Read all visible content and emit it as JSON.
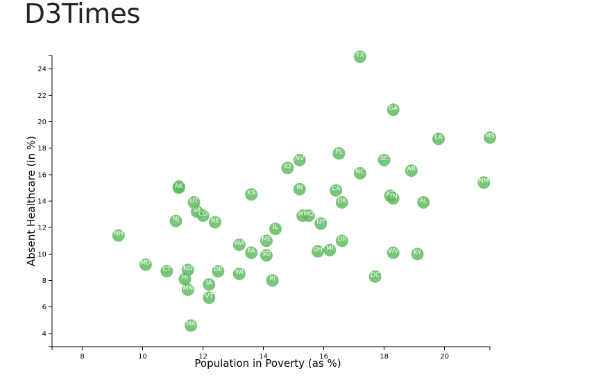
{
  "page": {
    "title": "D3Times"
  },
  "colors": {
    "marker": "#5cb85c",
    "marker_label": "#ffffff",
    "title": "#212529"
  },
  "chart_data": {
    "type": "scatter",
    "title": "",
    "xlabel": "Population in Poverty (as %)",
    "ylabel": "Absent Healthcare (in %)",
    "xlim": [
      7,
      21.5
    ],
    "ylim": [
      3,
      25
    ],
    "x_ticks": [
      8,
      10,
      12,
      14,
      16,
      18,
      20
    ],
    "y_ticks": [
      4,
      6,
      8,
      10,
      12,
      14,
      16,
      18,
      20,
      22,
      24
    ],
    "grid": false,
    "points": [
      {
        "label": "TX",
        "x": 17.2,
        "y": 24.9
      },
      {
        "label": "GA",
        "x": 18.3,
        "y": 20.9
      },
      {
        "label": "LA",
        "x": 19.8,
        "y": 18.7
      },
      {
        "label": "MS",
        "x": 21.5,
        "y": 18.8
      },
      {
        "label": "FL",
        "x": 16.5,
        "y": 17.6
      },
      {
        "label": "SC",
        "x": 18.0,
        "y": 17.1
      },
      {
        "label": "NV",
        "x": 15.2,
        "y": 17.1
      },
      {
        "label": "ID",
        "x": 14.8,
        "y": 16.5
      },
      {
        "label": "AR",
        "x": 18.9,
        "y": 16.3
      },
      {
        "label": "NC",
        "x": 17.2,
        "y": 16.1
      },
      {
        "label": "NM",
        "x": 21.3,
        "y": 15.4
      },
      {
        "label": "WY",
        "x": 11.2,
        "y": 15.1
      },
      {
        "label": "AK",
        "x": 11.2,
        "y": 15.0
      },
      {
        "label": "IN",
        "x": 15.2,
        "y": 14.9
      },
      {
        "label": "CA",
        "x": 16.4,
        "y": 14.8
      },
      {
        "label": "KS",
        "x": 13.6,
        "y": 14.5
      },
      {
        "label": "AZ",
        "x": 18.2,
        "y": 14.4
      },
      {
        "label": "TN",
        "x": 18.3,
        "y": 14.2
      },
      {
        "label": "OK",
        "x": 16.6,
        "y": 13.9
      },
      {
        "label": "AL",
        "x": 19.3,
        "y": 13.9
      },
      {
        "label": "UT",
        "x": 11.7,
        "y": 13.9
      },
      {
        "label": "VA",
        "x": 11.8,
        "y": 13.2
      },
      {
        "label": "CO",
        "x": 12.0,
        "y": 12.9
      },
      {
        "label": "MT",
        "x": 15.3,
        "y": 12.9
      },
      {
        "label": "MO",
        "x": 15.5,
        "y": 12.9
      },
      {
        "label": "NJ",
        "x": 11.1,
        "y": 12.5
      },
      {
        "label": "NE",
        "x": 12.4,
        "y": 12.4
      },
      {
        "label": "NY",
        "x": 15.9,
        "y": 12.3
      },
      {
        "label": "IL",
        "x": 14.4,
        "y": 11.9
      },
      {
        "label": "NH",
        "x": 9.2,
        "y": 11.4
      },
      {
        "label": "ME",
        "x": 14.1,
        "y": 11.0
      },
      {
        "label": "OR",
        "x": 16.6,
        "y": 11.0
      },
      {
        "label": "WA",
        "x": 13.2,
        "y": 10.7
      },
      {
        "label": "OH",
        "x": 15.8,
        "y": 10.2
      },
      {
        "label": "MI",
        "x": 16.2,
        "y": 10.3
      },
      {
        "label": "PA",
        "x": 13.6,
        "y": 10.1
      },
      {
        "label": "WV",
        "x": 18.3,
        "y": 10.1
      },
      {
        "label": "KY",
        "x": 19.1,
        "y": 10.0
      },
      {
        "label": "SD",
        "x": 14.1,
        "y": 9.9
      },
      {
        "label": "MD",
        "x": 10.1,
        "y": 9.2
      },
      {
        "label": "ND",
        "x": 11.5,
        "y": 8.8
      },
      {
        "label": "CT",
        "x": 10.8,
        "y": 8.7
      },
      {
        "label": "DE",
        "x": 12.5,
        "y": 8.7
      },
      {
        "label": "WI",
        "x": 13.2,
        "y": 8.5
      },
      {
        "label": "DC",
        "x": 17.7,
        "y": 8.3
      },
      {
        "label": "HI",
        "x": 11.4,
        "y": 8.1
      },
      {
        "label": "RI",
        "x": 14.3,
        "y": 8.0
      },
      {
        "label": "IA",
        "x": 12.2,
        "y": 7.7
      },
      {
        "label": "MN",
        "x": 11.5,
        "y": 7.3
      },
      {
        "label": "VT",
        "x": 12.2,
        "y": 6.7
      },
      {
        "label": "MA",
        "x": 11.6,
        "y": 4.6
      }
    ]
  }
}
